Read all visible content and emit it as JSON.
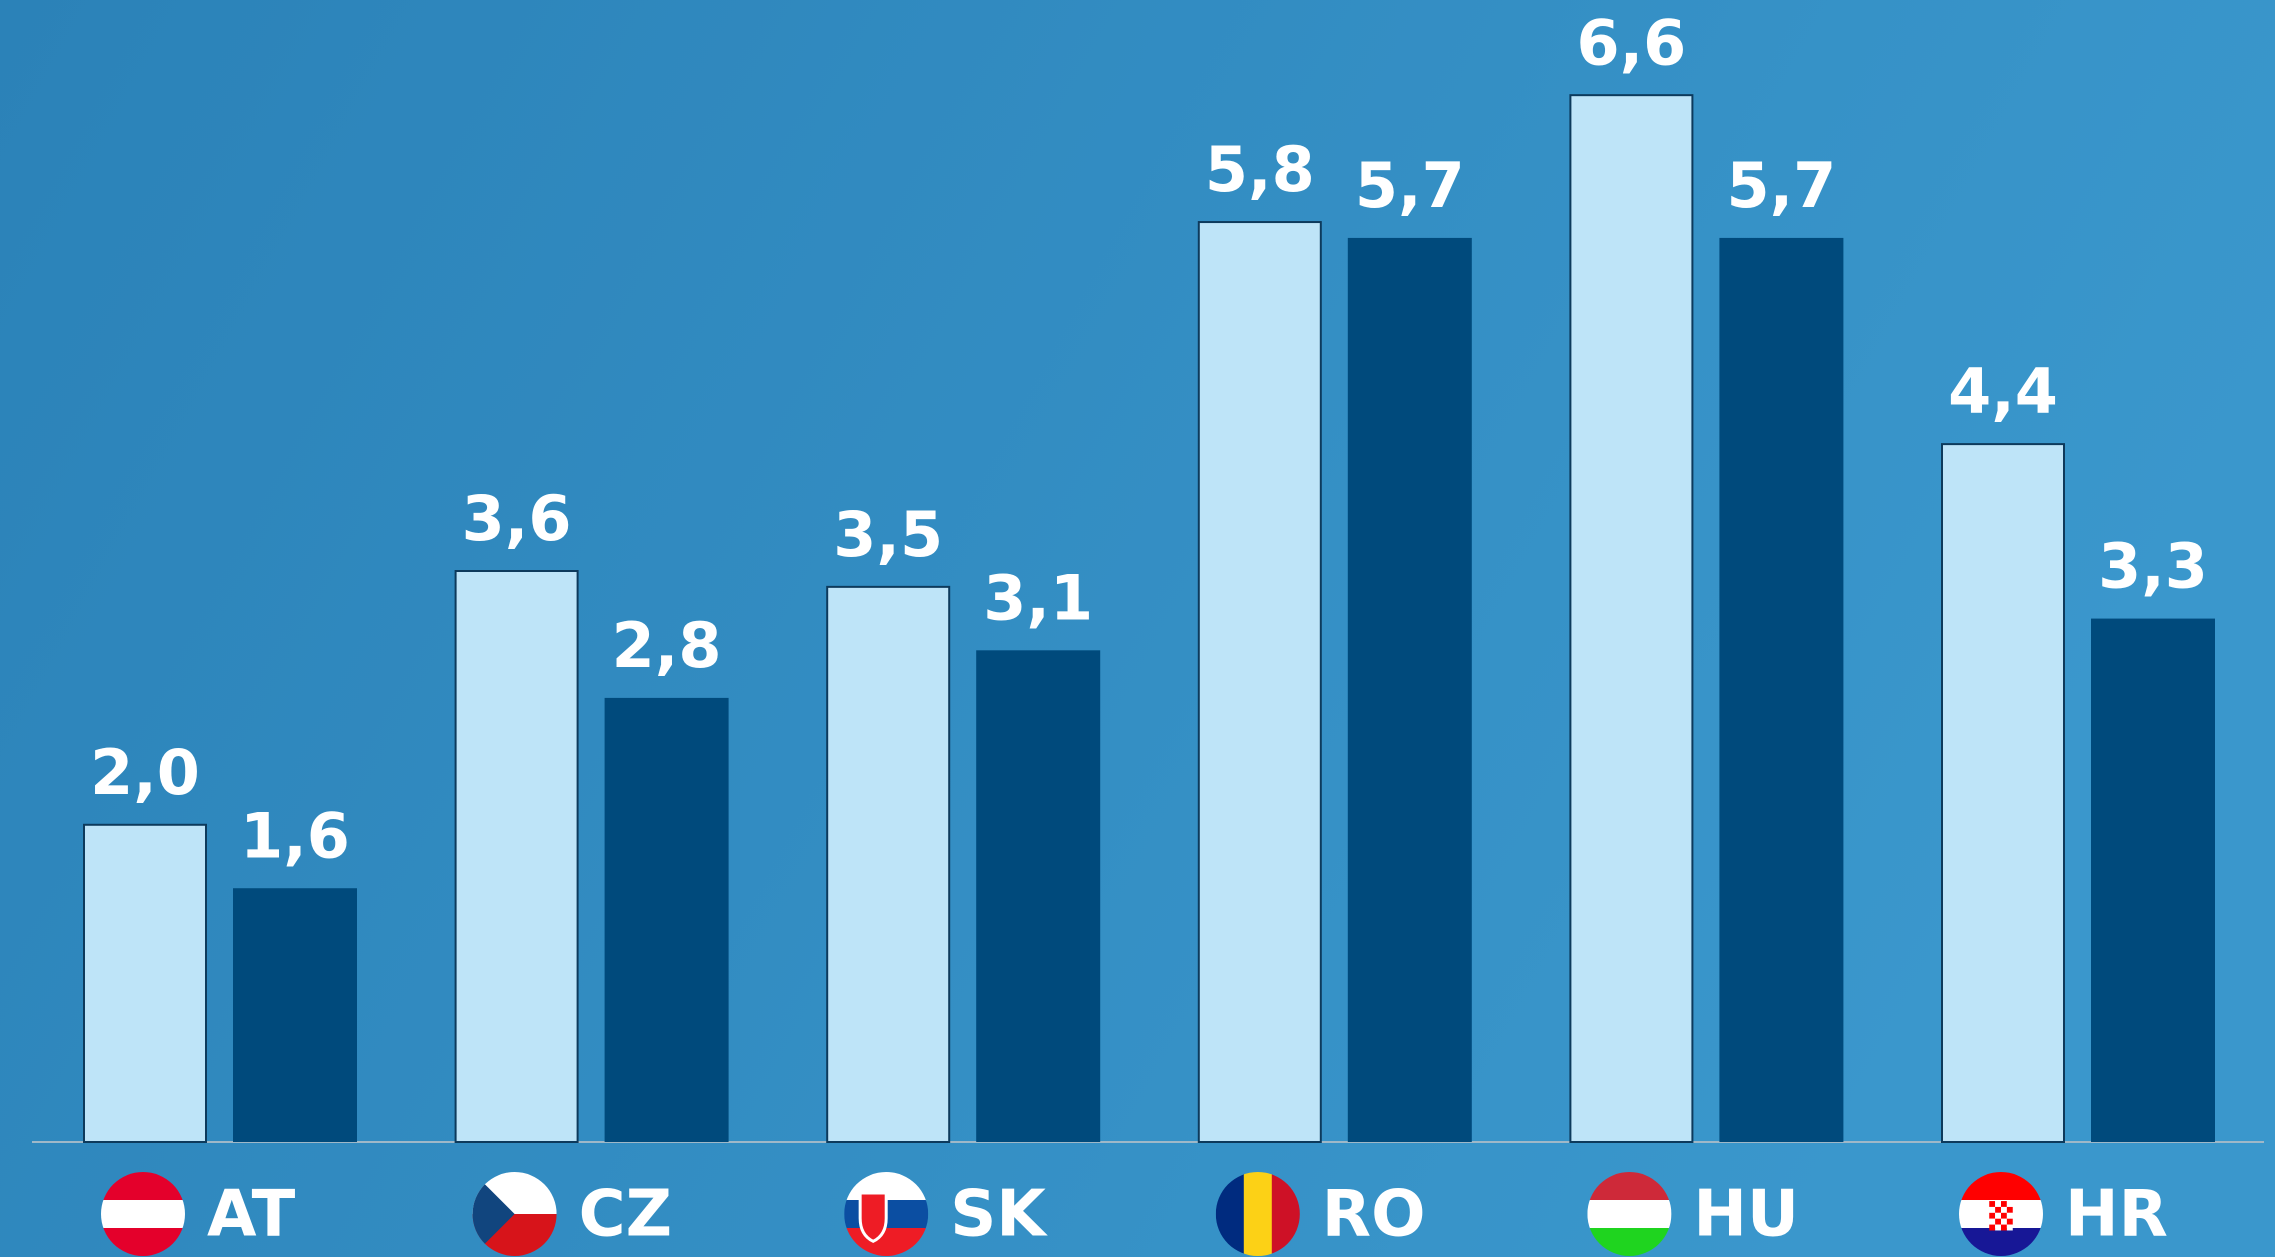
{
  "chart_data": {
    "type": "bar",
    "categories": [
      "AT",
      "CZ",
      "SK",
      "RO",
      "HU",
      "HR"
    ],
    "series": [
      {
        "color": "#bee4f8",
        "values": [
          2.0,
          3.6,
          3.5,
          5.8,
          6.6,
          4.4
        ],
        "value_labels": [
          "2,0",
          "3,6",
          "3,5",
          "5,8",
          "6,6",
          "4,4"
        ]
      },
      {
        "color": "#004a7c",
        "values": [
          1.6,
          2.8,
          3.1,
          5.7,
          5.7,
          3.3
        ],
        "value_labels": [
          "1,6",
          "2,8",
          "3,1",
          "5,7",
          "5,7",
          "3,3"
        ]
      }
    ],
    "ylim": [
      0,
      7.2
    ]
  }
}
